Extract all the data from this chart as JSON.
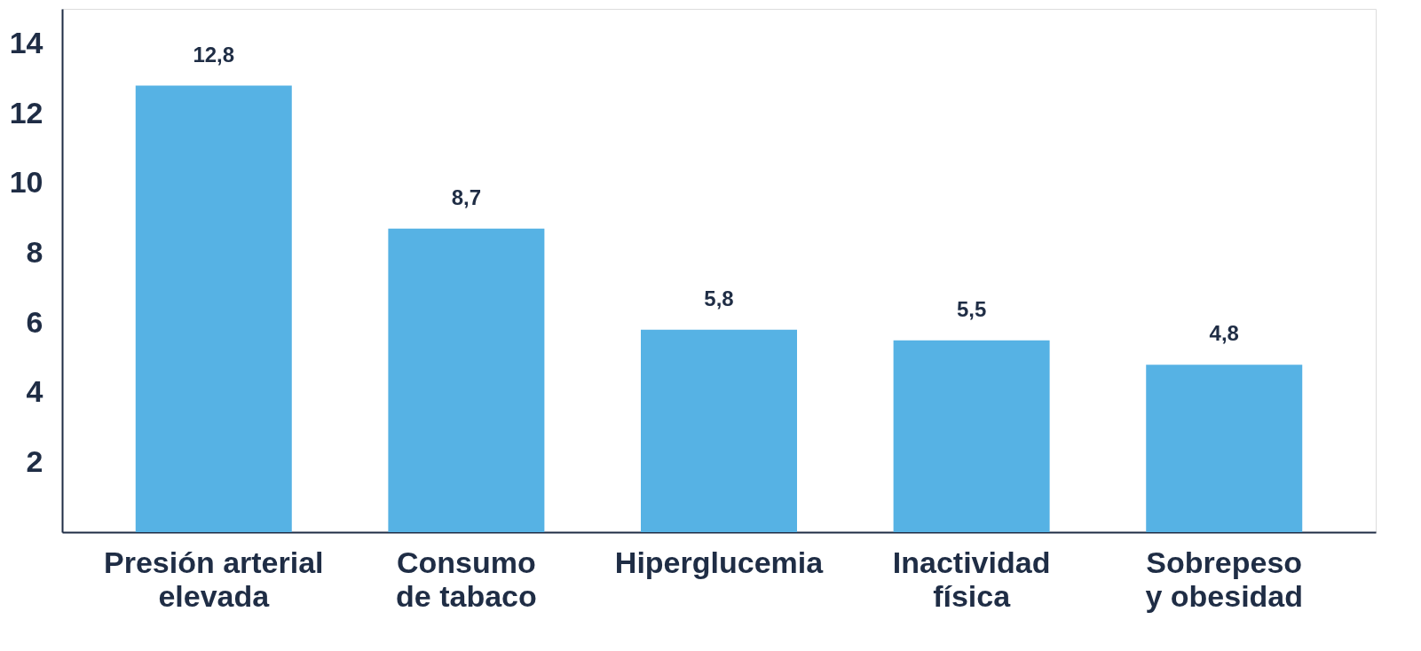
{
  "chart_data": {
    "type": "bar",
    "categories": [
      "Presión arterial elevada",
      "Consumo de tabaco",
      "Hiperglucemia",
      "Inactividad física",
      "Sobrepeso y obesidad"
    ],
    "values": [
      12.8,
      8.7,
      5.8,
      5.5,
      4.8
    ],
    "value_labels": [
      "12,8",
      "8,7",
      "5,8",
      "5,5",
      "4,8"
    ],
    "color": "#56b2e4",
    "ylim": [
      0,
      15
    ],
    "yticks": [
      2,
      4,
      6,
      8,
      10,
      12,
      14
    ],
    "grid": false
  }
}
